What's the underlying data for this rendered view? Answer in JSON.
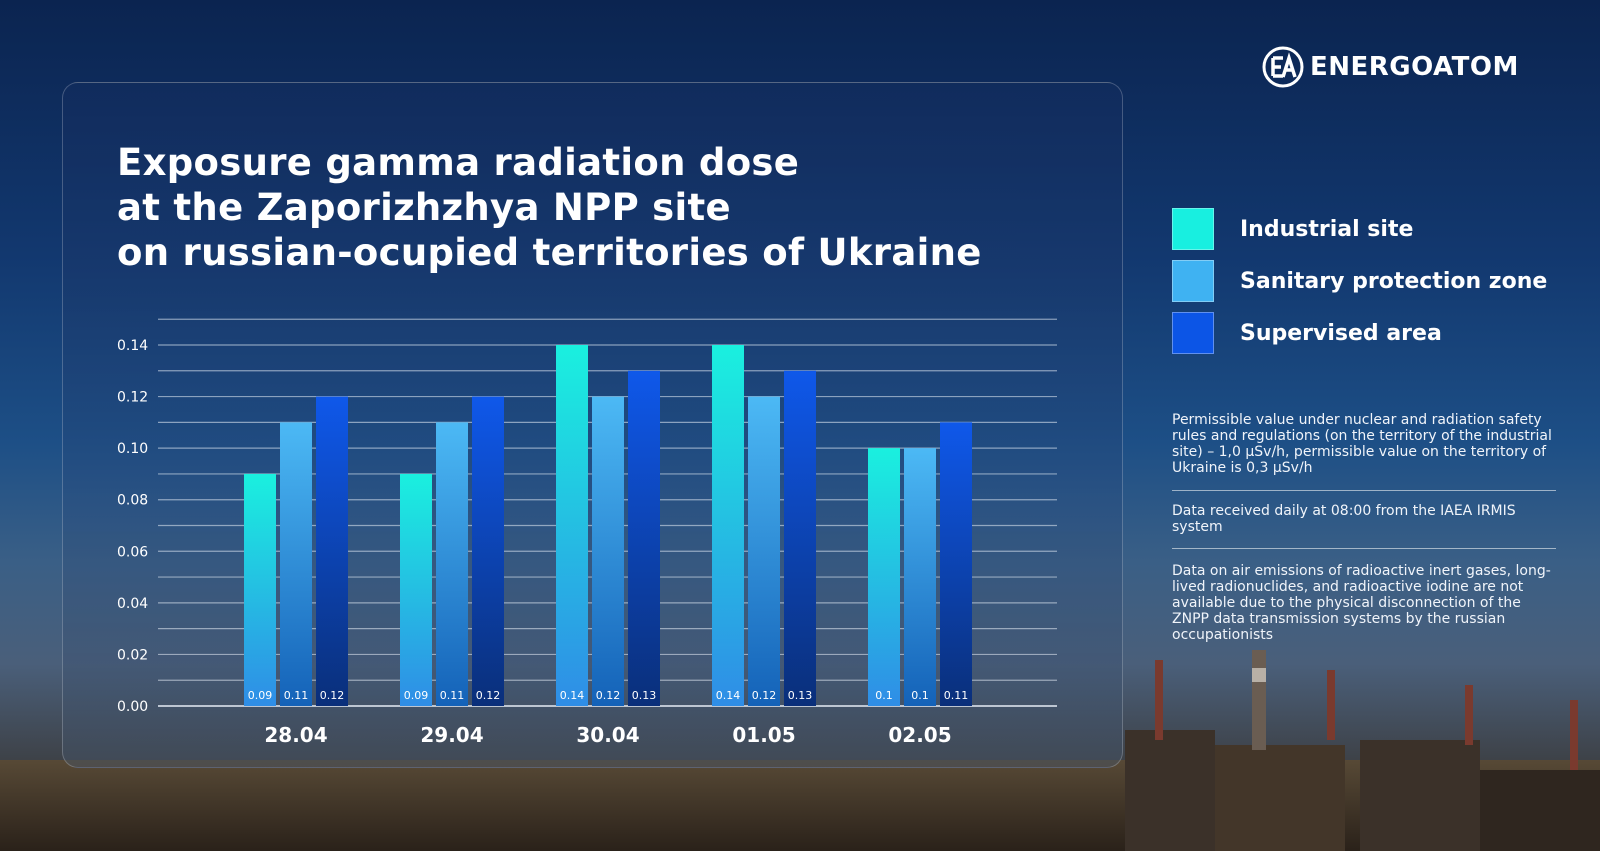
{
  "brand": {
    "name": "ENERGOATOM",
    "icon": "energoatom-ea-logo-icon"
  },
  "chart_data": {
    "type": "bar",
    "title_lines": [
      "Exposure gamma radiation dose",
      "at the Zaporizhzhya NPP site",
      "on russian-ocupied territories of Ukraine"
    ],
    "categories": [
      "28.04",
      "29.04",
      "30.04",
      "01.05",
      "02.05"
    ],
    "series": [
      {
        "name": "Industrial site",
        "color": "#18efe0",
        "values": [
          0.09,
          0.09,
          0.14,
          0.14,
          0.1
        ],
        "labels": [
          "0.09",
          "0.09",
          "0.14",
          "0.14",
          "0.1"
        ]
      },
      {
        "name": "Sanitary protection zone",
        "color": "#3fb2f2",
        "values": [
          0.11,
          0.11,
          0.12,
          0.12,
          0.1
        ],
        "labels": [
          "0.11",
          "0.11",
          "0.12",
          "0.12",
          "0.1"
        ]
      },
      {
        "name": "Supervised area",
        "color": "#0c55e6",
        "values": [
          0.12,
          0.12,
          0.13,
          0.13,
          0.11
        ],
        "labels": [
          "0.12",
          "0.12",
          "0.13",
          "0.13",
          "0.11"
        ]
      }
    ],
    "ylim": [
      0,
      0.15
    ],
    "yticks": [
      "0.00",
      "0.02",
      "0.04",
      "0.06",
      "0.08",
      "0.10",
      "0.12",
      "0.14"
    ],
    "grid": true,
    "legend_position": "right"
  },
  "notes": [
    "Permissible value under nuclear and radiation safety rules and regulations (on the territory of the industrial site) – 1,0 µSv/h, permissible value on the territory of Ukraine is 0,3 µSv/h",
    "Data received daily at 08:00 from the IAEA IRMIS system",
    "Data on air emissions of radioactive inert gases, long-lived radionuclides, and radioactive iodine are not available due to the physical disconnection of the ZNPP data transmission systems by the russian occupationists"
  ]
}
